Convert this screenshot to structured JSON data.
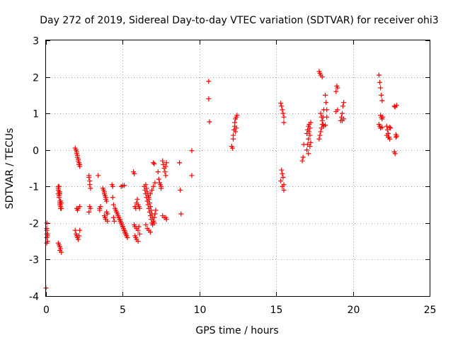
{
  "chart_data": {
    "type": "scatter",
    "title": "Day 272 of 2019, Sidereal Day-to-day VTEC variation (SDTVAR) for receiver ohi3",
    "xlabel": "GPS time / hours",
    "ylabel": "SDTVAR / TECUs",
    "xlim": [
      0,
      25
    ],
    "ylim": [
      -4,
      3
    ],
    "xticks": [
      "0",
      "5",
      "10",
      "15",
      "20",
      "25"
    ],
    "yticks": [
      "-4",
      "-3",
      "-2",
      "-1",
      "0",
      "1",
      "2",
      "3"
    ],
    "grid": true,
    "marker": "plus",
    "color": "#ff0000",
    "series": [
      {
        "name": "SDTVAR",
        "x": [
          0.0,
          0.05,
          0.05,
          0.05,
          0.05,
          0.05,
          0.05,
          0.1,
          0.1,
          0.1,
          0.8,
          0.8,
          0.8,
          0.8,
          0.85,
          0.85,
          0.85,
          0.85,
          0.9,
          0.9,
          0.9,
          0.9,
          0.9,
          0.95,
          0.95,
          0.95,
          0.95,
          1.0,
          1.0,
          0.8,
          0.85,
          0.9,
          0.9,
          0.95,
          1.0,
          1.9,
          1.95,
          2.0,
          2.0,
          2.05,
          2.05,
          2.1,
          2.1,
          2.15,
          2.15,
          2.2,
          2.2,
          1.9,
          1.95,
          2.0,
          2.05,
          2.1,
          2.15,
          2.2,
          2.0,
          2.05,
          2.1,
          2.2,
          2.8,
          2.8,
          2.85,
          2.85,
          2.9,
          2.9,
          2.85,
          2.8,
          3.4,
          3.5,
          3.5,
          3.55,
          3.7,
          3.75,
          3.8,
          3.8,
          3.85,
          3.9,
          3.9,
          3.95,
          3.95,
          4.0,
          3.8,
          3.85,
          3.9,
          4.0,
          4.3,
          4.35,
          4.35,
          4.4,
          4.4,
          4.45,
          4.5,
          4.55,
          4.6,
          4.6,
          4.65,
          4.7,
          4.75,
          4.8,
          4.85,
          4.9,
          4.95,
          5.0,
          5.05,
          5.1,
          5.15,
          5.2,
          5.25,
          4.7,
          4.8,
          4.9,
          5.0,
          5.1,
          5.2,
          5.3,
          4.75,
          4.85,
          4.95,
          5.05,
          5.15,
          5.25,
          4.8,
          4.9,
          5.0,
          5.1,
          5.2,
          4.9,
          5.0,
          5.1,
          5.7,
          5.75,
          5.8,
          5.85,
          5.9,
          5.95,
          6.0,
          6.05,
          6.1,
          5.75,
          5.8,
          5.9,
          6.0,
          6.1,
          5.8,
          5.85,
          5.9,
          6.0,
          6.05,
          6.4,
          6.45,
          6.5,
          6.55,
          6.6,
          6.65,
          6.7,
          6.75,
          6.8,
          6.85,
          6.9,
          6.95,
          7.0,
          7.05,
          7.1,
          7.15,
          6.5,
          6.55,
          6.6,
          6.65,
          6.7,
          6.75,
          6.8,
          6.85,
          6.9,
          6.95,
          7.0,
          7.05,
          6.6,
          6.7,
          6.8,
          6.9,
          7.0,
          7.1,
          6.5,
          6.6,
          6.7,
          6.8,
          7.0,
          7.05,
          7.3,
          7.35,
          7.4,
          7.45,
          7.5,
          7.5,
          7.6,
          7.65,
          7.7,
          7.75,
          7.8,
          7.8,
          7.85,
          7.6,
          7.7,
          7.8,
          7.85,
          8.7,
          8.75,
          8.8,
          9.5,
          9.5,
          10.6,
          10.6,
          10.65,
          12.1,
          12.15,
          12.2,
          12.2,
          12.25,
          12.3,
          12.3,
          12.35,
          12.35,
          12.4,
          12.4,
          12.45,
          15.3,
          15.35,
          15.4,
          15.45,
          15.5,
          15.5,
          15.35,
          15.4,
          15.45,
          15.5,
          15.3,
          15.4,
          15.5,
          16.7,
          16.75,
          16.8,
          17.0,
          17.05,
          17.1,
          17.15,
          17.2,
          17.25,
          17.0,
          17.05,
          17.1,
          17.15,
          17.2,
          17.25,
          17.1,
          17.2,
          17.8,
          17.85,
          17.9,
          17.95,
          18.0,
          18.05,
          18.1,
          17.8,
          17.85,
          17.9,
          18.0,
          17.9,
          17.95,
          18.0,
          18.05,
          18.1,
          18.2,
          18.25,
          18.3,
          18.2,
          18.3,
          18.9,
          18.95,
          19.0,
          19.2,
          19.25,
          19.3,
          19.35,
          19.4,
          18.9,
          19.0,
          19.3,
          19.4,
          21.7,
          21.75,
          21.8,
          21.85,
          21.9,
          21.8,
          21.85,
          21.9,
          21.95,
          21.7,
          21.75,
          21.8,
          21.9,
          22.2,
          22.25,
          22.3,
          22.35,
          22.4,
          22.45,
          22.2,
          22.3,
          22.4,
          22.7,
          22.75,
          22.8,
          22.85,
          22.7,
          22.75,
          22.8,
          22.85
        ],
        "y": [
          -3.78,
          -2.55,
          -2.4,
          -2.3,
          -2.2,
          -2.15,
          -2.0,
          -2.5,
          -2.35,
          -2.3,
          -1.0,
          -1.05,
          -1.1,
          -1.2,
          -1.0,
          -1.15,
          -1.25,
          -1.3,
          -1.15,
          -1.2,
          -1.4,
          -1.45,
          -1.5,
          -1.4,
          -1.5,
          -1.55,
          -1.6,
          -1.6,
          -1.45,
          -2.55,
          -2.6,
          -2.65,
          -2.75,
          -2.7,
          -2.8,
          0.05,
          0.0,
          -0.05,
          -0.1,
          -0.15,
          -0.2,
          -0.25,
          -0.3,
          -0.35,
          -0.4,
          -0.4,
          -0.45,
          -2.2,
          -2.3,
          -2.35,
          -2.4,
          -2.45,
          -2.35,
          -2.2,
          -1.6,
          -1.65,
          -1.6,
          -1.55,
          -0.7,
          -0.75,
          -0.85,
          -0.95,
          -1.05,
          -1.6,
          -1.55,
          -1.7,
          -0.7,
          -1.6,
          -1.65,
          -1.55,
          -1.05,
          -1.1,
          -1.15,
          -1.2,
          -1.25,
          -1.3,
          -1.35,
          -1.4,
          -1.7,
          -1.75,
          -1.8,
          -1.85,
          -1.9,
          -1.95,
          -0.95,
          -1.0,
          -1.3,
          -1.5,
          -1.85,
          -1.95,
          -1.6,
          -1.65,
          -1.7,
          -1.7,
          -1.75,
          -1.8,
          -1.85,
          -1.9,
          -1.95,
          -2.0,
          -2.05,
          -2.1,
          -2.15,
          -2.2,
          -2.25,
          -2.3,
          -2.35,
          -1.8,
          -1.9,
          -2.0,
          -2.1,
          -2.2,
          -2.3,
          -2.4,
          -1.85,
          -1.95,
          -2.05,
          -2.15,
          -2.25,
          -2.35,
          -1.9,
          -2.0,
          -2.1,
          -2.2,
          -2.3,
          -1.0,
          -0.98,
          -0.97,
          -0.6,
          -0.65,
          -1.55,
          -1.6,
          -1.45,
          -1.35,
          -1.5,
          -1.55,
          -1.6,
          -2.05,
          -2.1,
          -2.15,
          -2.2,
          -2.3,
          -2.35,
          -2.4,
          -2.45,
          -2.5,
          -2.1,
          -1.0,
          -1.1,
          -1.2,
          -1.3,
          -1.4,
          -1.5,
          -1.6,
          -1.7,
          -1.8,
          -1.9,
          -2.0,
          -2.05,
          -1.95,
          -1.85,
          -1.75,
          -1.65,
          -0.95,
          -1.05,
          -1.15,
          -1.25,
          -1.35,
          -1.45,
          -1.55,
          -1.65,
          -1.75,
          -1.85,
          -1.95,
          -2.0,
          -1.4,
          -1.3,
          -1.2,
          -1.1,
          -1.0,
          -0.9,
          -2.05,
          -2.15,
          -2.2,
          -2.25,
          -0.35,
          -0.38,
          -0.6,
          -0.8,
          -0.9,
          -0.95,
          -1.0,
          -1.05,
          -0.3,
          -0.4,
          -0.5,
          -0.6,
          -0.7,
          -0.45,
          -0.35,
          -1.8,
          -1.85,
          -1.85,
          -1.9,
          -0.35,
          -1.1,
          -1.75,
          -0.7,
          -0.02,
          1.88,
          1.4,
          0.77,
          0.1,
          0.05,
          0.3,
          0.4,
          0.55,
          0.65,
          0.75,
          0.85,
          0.5,
          0.6,
          0.9,
          0.95,
          1.28,
          1.2,
          1.1,
          1.0,
          0.9,
          0.75,
          -0.55,
          -0.65,
          -0.75,
          -0.95,
          -0.85,
          -1.0,
          -1.1,
          -0.3,
          -0.2,
          0.15,
          0.0,
          0.15,
          0.3,
          0.5,
          0.6,
          0.75,
          0.45,
          0.55,
          0.65,
          0.7,
          0.4,
          0.2,
          -0.1,
          0.1,
          0.3,
          0.4,
          0.5,
          0.6,
          0.7,
          0.9,
          1.1,
          2.15,
          2.1,
          2.05,
          2.0,
          1.0,
          0.9,
          0.8,
          0.7,
          0.65,
          1.5,
          1.3,
          1.1,
          0.68,
          0.9,
          1.6,
          1.75,
          1.7,
          0.8,
          0.9,
          1.0,
          1.2,
          1.3,
          1.05,
          1.1,
          0.8,
          0.85,
          2.05,
          1.85,
          1.7,
          1.5,
          1.35,
          0.95,
          0.9,
          0.85,
          0.9,
          0.7,
          0.65,
          0.6,
          0.62,
          0.65,
          0.55,
          0.45,
          0.35,
          0.3,
          0.6,
          0.4,
          0.35,
          0.62,
          1.2,
          1.18,
          0.42,
          0.38,
          -0.05,
          -0.1,
          0.35,
          1.22
        ]
      }
    ]
  }
}
